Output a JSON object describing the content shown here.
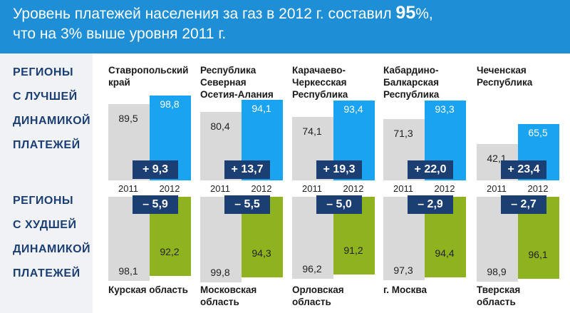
{
  "header": {
    "line1_prefix": "Уровень платежей населения за газ в 2012 г. составил ",
    "line1_value": "95",
    "line1_suffix": "%,",
    "line2": "что на 3% выше уровня 2011 г."
  },
  "sidebar": {
    "best_lines": [
      "РЕГИОНЫ",
      "С ЛУЧШЕЙ",
      "ДИНАМИКОЙ",
      "ПЛАТЕЖЕЙ"
    ],
    "worst_lines": [
      "РЕГИОНЫ",
      "С ХУДШЕЙ",
      "ДИНАМИКОЙ",
      "ПЛАТЕЖЕЙ"
    ]
  },
  "colors": {
    "header_bg": "#1e8fd6",
    "bar_2011": "#d9d9d9",
    "bar_2012_best": "#1aa3f0",
    "bar_2012_worst": "#8fb31e",
    "delta_box": "#1b3e73"
  },
  "chart_data": [
    {
      "type": "bar",
      "title": "РЕГИОНЫ С ЛУЧШЕЙ ДИНАМИКОЙ ПЛАТЕЖЕЙ",
      "categories": [
        "Ставропольский край",
        "Республика Северная Осетия-Алания",
        "Карачаево-Черкесская Республика",
        "Кабардино-Балкарская Республика",
        "Чеченская Республика"
      ],
      "category_lines": [
        [
          "Ставропольский",
          "край"
        ],
        [
          "Республика",
          "Северная",
          "Осетия-Алания"
        ],
        [
          "Карачаево-",
          "Черкесская",
          "Республика"
        ],
        [
          "Кабардино-",
          "Балкарская",
          "Республика"
        ],
        [
          "Чеченская",
          "Республика"
        ]
      ],
      "series": [
        {
          "name": "2011",
          "values": [
            89.5,
            80.4,
            74.1,
            71.3,
            42.1
          ],
          "labels": [
            "89,5",
            "80,4",
            "74,1",
            "71,3",
            "42,1"
          ]
        },
        {
          "name": "2012",
          "values": [
            98.8,
            94.1,
            93.4,
            93.3,
            65.5
          ],
          "labels": [
            "98,8",
            "94,1",
            "93,4",
            "93,3",
            "65,5"
          ]
        }
      ],
      "changes": [
        "+ 9,3",
        "+ 13,7",
        "+ 19,3",
        "+ 22,0",
        "+ 23,4"
      ]
    },
    {
      "type": "bar",
      "title": "РЕГИОНЫ С ХУДШЕЙ ДИНАМИКОЙ ПЛАТЕЖЕЙ",
      "categories": [
        "Курская область",
        "Московская область",
        "Орловская область",
        "г. Москва",
        "Тверская область"
      ],
      "category_lines": [
        [
          "Курская область"
        ],
        [
          "Московская",
          "область"
        ],
        [
          "Орловская",
          "область"
        ],
        [
          "г. Москва"
        ],
        [
          "Тверская",
          "область"
        ]
      ],
      "series": [
        {
          "name": "2011",
          "values": [
            98.1,
            99.8,
            96.2,
            97.3,
            98.9
          ],
          "labels": [
            "98,1",
            "99,8",
            "96,2",
            "97,3",
            "98,9"
          ]
        },
        {
          "name": "2012",
          "values": [
            92.2,
            94.3,
            91.2,
            94.4,
            96.1
          ],
          "labels": [
            "92,2",
            "94,3",
            "91,2",
            "94,4",
            "96,1"
          ]
        }
      ],
      "changes": [
        "– 5,9",
        "– 5,5",
        "– 5,0",
        "– 2,9",
        "– 2,7"
      ]
    }
  ]
}
